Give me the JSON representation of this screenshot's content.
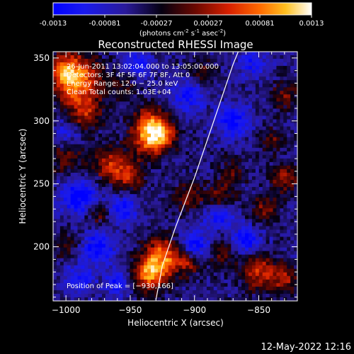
{
  "colorbar": {
    "tick_labels": [
      "-0.0013",
      "-0.00081",
      "-0.00027",
      "0.00027",
      "0.00081",
      "0.0013"
    ],
    "unit_parts": [
      "(photons cm",
      "-2",
      " s",
      "-1",
      " asec",
      "-2",
      ")"
    ]
  },
  "chart_data": {
    "type": "heatmap",
    "title": "Reconstructed RHESSI Image",
    "xlabel": "Heliocentric X (arcsec)",
    "ylabel": "Heliocentric Y (arcsec)",
    "xlim": [
      -1010,
      -820
    ],
    "ylim": [
      157,
      355
    ],
    "x_ticks": [
      -1000,
      -950,
      -900,
      -850
    ],
    "y_ticks": [
      200,
      250,
      300,
      350
    ],
    "x_tick_labels": [
      "−1000",
      "−950",
      "−900",
      "−850"
    ],
    "y_tick_labels": [
      "200",
      "250",
      "300",
      "350"
    ],
    "value_range": [
      -0.0013,
      0.0013
    ],
    "colormap_stops": [
      "#0000ff",
      "#2a1a9a",
      "#000000",
      "#a01000",
      "#ff3000",
      "#ff9000",
      "#ffff60",
      "#ffffff"
    ],
    "annotations": [
      "26‑Jun‑2011 13:02:04.000 to 13:05:00.000",
      "Detectors: 3F 4F 5F 6F 7F 8F, Att 0",
      "Energy Range: 12.0 − 25.0 keV",
      "Clean    Total counts: 1.03E+04"
    ],
    "peak_label": "Position of Peak = [−930,166]",
    "limb_line": [
      [
        -930,
        158
      ],
      [
        -925,
        185
      ],
      [
        -915,
        215
      ],
      [
        -900,
        255
      ],
      [
        -885,
        300
      ],
      [
        -870,
        345
      ],
      [
        -866,
        355
      ]
    ],
    "hotspots": [
      [
        -1000,
        340,
        0.0009,
        10
      ],
      [
        -990,
        330,
        0.0011,
        14
      ],
      [
        -985,
        305,
        0.0007,
        9
      ],
      [
        -965,
        265,
        0.0009,
        10
      ],
      [
        -950,
        255,
        0.0007,
        8
      ],
      [
        -1000,
        270,
        0.0006,
        9
      ],
      [
        -935,
        300,
        0.0008,
        9
      ],
      [
        -925,
        290,
        0.0009,
        8
      ],
      [
        -935,
        285,
        0.0011,
        10
      ],
      [
        -905,
        240,
        0.0006,
        8
      ],
      [
        -880,
        240,
        0.0007,
        8
      ],
      [
        -870,
        260,
        0.0005,
        7
      ],
      [
        -925,
        193,
        0.0012,
        10
      ],
      [
        -935,
        178,
        0.0013,
        9
      ],
      [
        -905,
        188,
        0.0008,
        8
      ],
      [
        -880,
        195,
        0.0006,
        8
      ],
      [
        -850,
        180,
        0.0009,
        10
      ],
      [
        -830,
        175,
        0.0007,
        8
      ],
      [
        -845,
        230,
        0.0006,
        8
      ],
      [
        -830,
        255,
        0.0007,
        8
      ],
      [
        -840,
        285,
        0.0005,
        7
      ],
      [
        -830,
        320,
        0.0006,
        8
      ],
      [
        -1000,
        200,
        0.0004,
        8
      ],
      [
        -975,
        225,
        0.0005,
        7
      ],
      [
        -895,
        340,
        0.0004,
        8
      ],
      [
        -955,
        330,
        0.0004,
        7
      ]
    ],
    "cool_spots": [
      [
        -990,
        240,
        -0.0009,
        10
      ],
      [
        -975,
        200,
        -0.0008,
        9
      ],
      [
        -955,
        230,
        -0.0007,
        8
      ],
      [
        -900,
        200,
        -0.0009,
        9
      ],
      [
        -880,
        225,
        -0.0007,
        8
      ],
      [
        -860,
        205,
        -0.0008,
        8
      ],
      [
        -870,
        300,
        -0.0008,
        9
      ],
      [
        -905,
        320,
        -0.0007,
        9
      ],
      [
        -945,
        345,
        -0.0006,
        8
      ],
      [
        -990,
        175,
        -0.0006,
        8
      ],
      [
        -960,
        172,
        -0.0007,
        7
      ],
      [
        -855,
        345,
        -0.0006,
        8
      ],
      [
        -1000,
        290,
        -0.0005,
        7
      ]
    ]
  },
  "timestamp": "12‑May‑2022 12:16"
}
